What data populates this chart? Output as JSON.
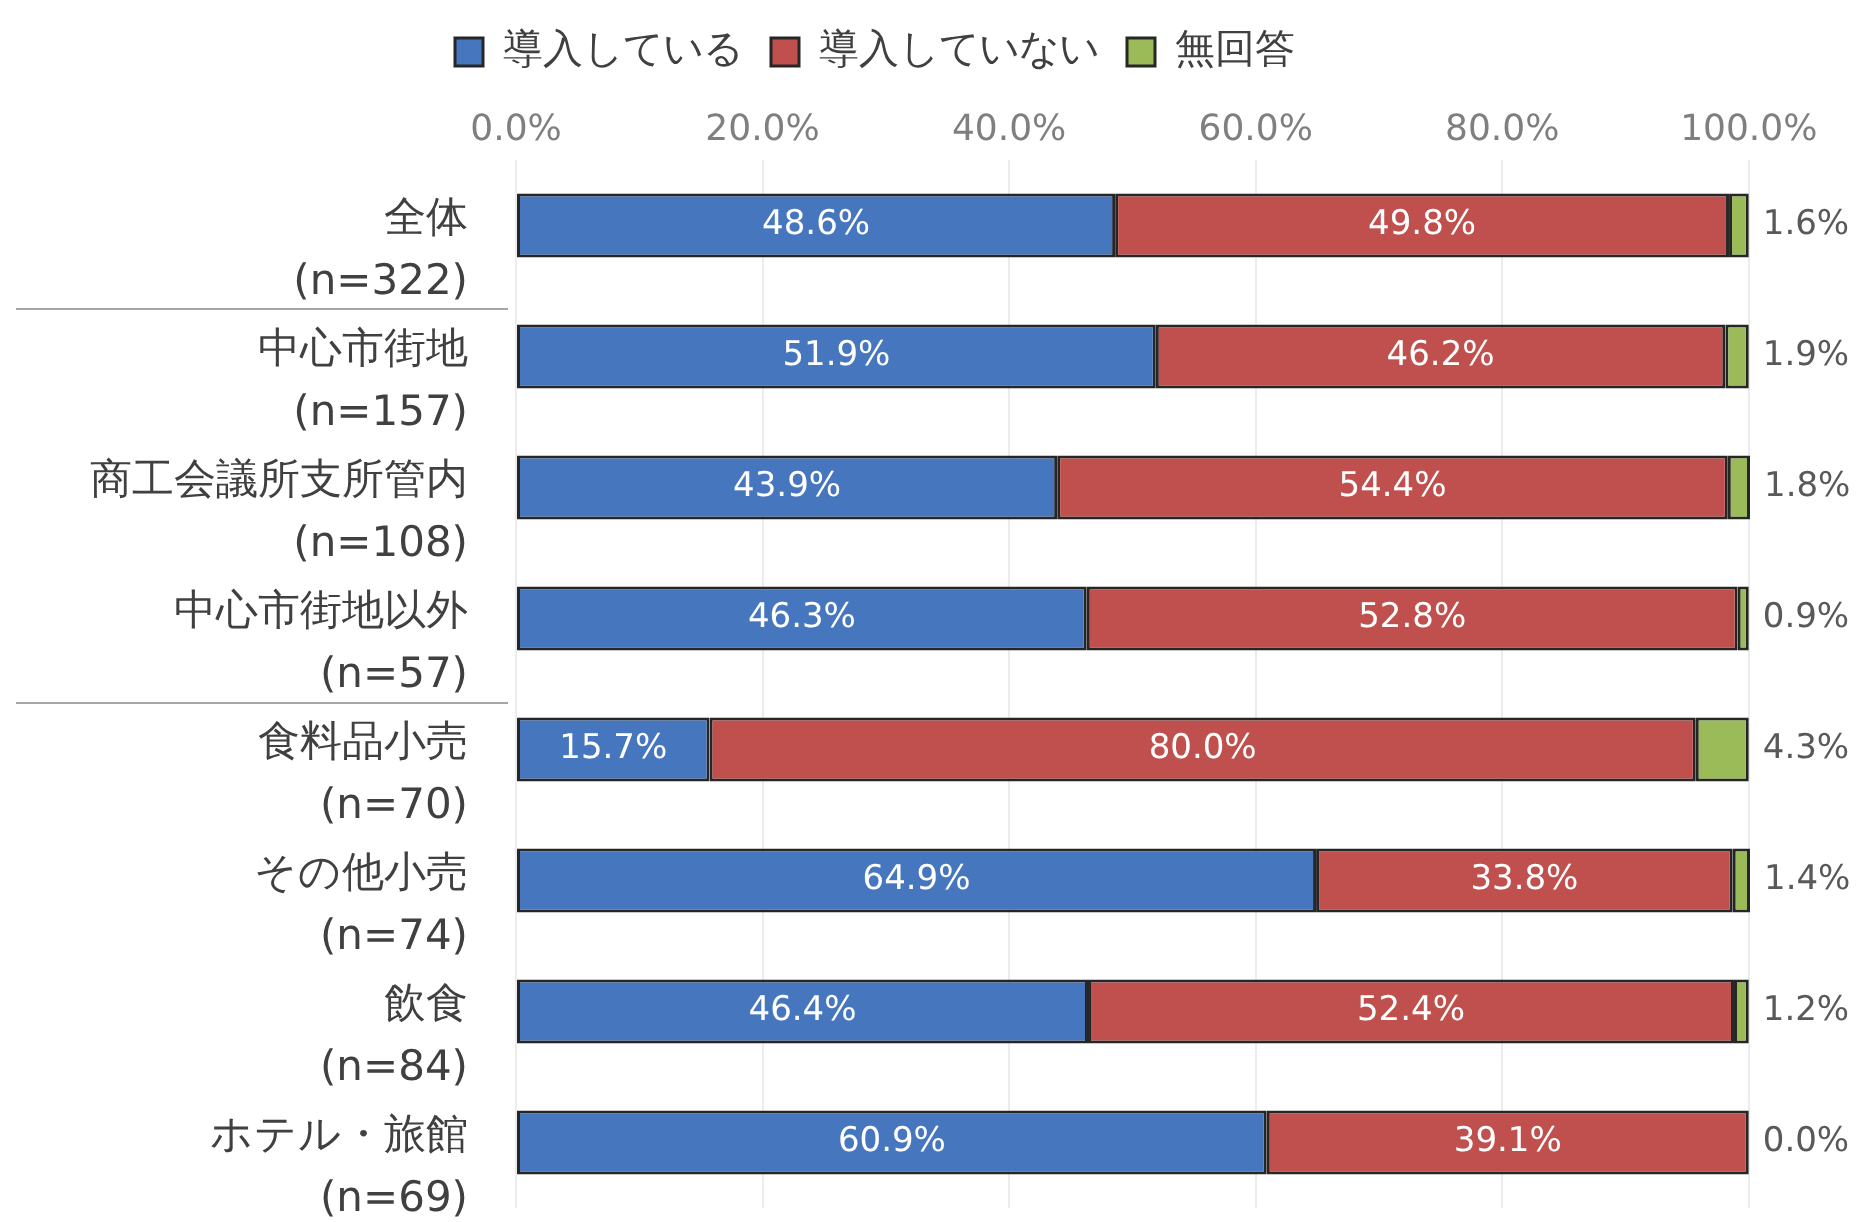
{
  "chart_data": {
    "type": "bar",
    "orientation": "horizontal",
    "stacked": true,
    "categories": [
      "全体\n(n=322)",
      "中心市街地\n(n=157)",
      "商工会議所支所管内\n(n=108)",
      "中心市街地以外\n(n=57)",
      "食料品小売\n(n=70)",
      "その他小売\n(n=74)",
      "飲食\n(n=84)",
      "ホテル・旅館\n(n=69)"
    ],
    "series": [
      {
        "name": "導入している",
        "color": "#4677be",
        "values": [
          48.6,
          51.9,
          43.9,
          46.3,
          15.7,
          64.9,
          46.4,
          60.9
        ],
        "value_labels": [
          "48.6%",
          "51.9%",
          "43.9%",
          "46.3%",
          "15.7%",
          "64.9%",
          "46.4%",
          "60.9%"
        ]
      },
      {
        "name": "導入していない",
        "color": "#c0504d",
        "values": [
          49.8,
          46.2,
          54.4,
          52.8,
          80.0,
          33.8,
          52.4,
          39.1
        ],
        "value_labels": [
          "49.8%",
          "46.2%",
          "54.4%",
          "52.8%",
          "80.0%",
          "33.8%",
          "52.4%",
          "39.1%"
        ]
      },
      {
        "name": "無回答",
        "color": "#9bbb59",
        "values": [
          1.6,
          1.9,
          1.8,
          0.9,
          4.3,
          1.4,
          1.2,
          0.0
        ],
        "value_labels": [
          "1.6%",
          "1.9%",
          "1.8%",
          "0.9%",
          "4.3%",
          "1.4%",
          "1.2%",
          "0.0%"
        ]
      }
    ],
    "xlim": [
      0,
      100.1
    ],
    "xticks": [
      {
        "value": 0,
        "label": "0.0%"
      },
      {
        "value": 20,
        "label": "20.0%"
      },
      {
        "value": 40,
        "label": "40.0%"
      },
      {
        "value": 60,
        "label": "60.0%"
      },
      {
        "value": 80,
        "label": "80.0%"
      },
      {
        "value": 100,
        "label": "100.0%"
      }
    ],
    "grid": "x",
    "legend": "top"
  }
}
